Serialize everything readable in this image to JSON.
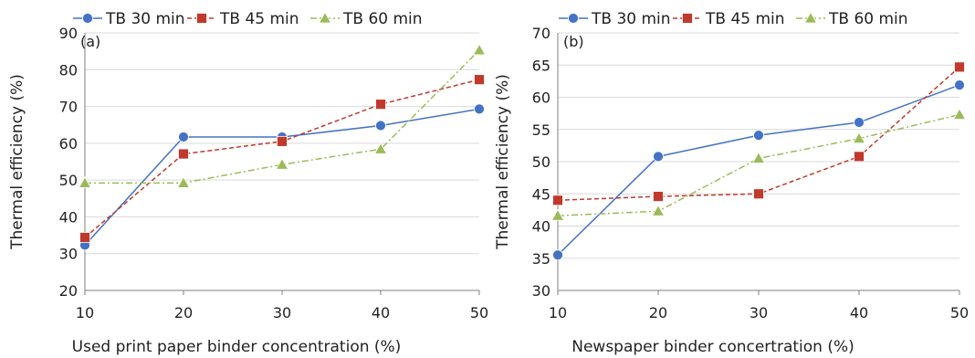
{
  "colors": {
    "tb30": "#4472C4",
    "tb45": "#C0392B",
    "tb60": "#9BBB59",
    "grid": "#d9d9d9",
    "axis": "#7f7f7f"
  },
  "chart_data": [
    {
      "type": "line",
      "panel_label": "(a)",
      "title": "",
      "xlabel": "Used print paper binder concentration (%)",
      "ylabel": "Thermal efficiency (%)",
      "x": [
        10,
        20,
        30,
        40,
        50
      ],
      "xlim": [
        10,
        50
      ],
      "ylim": [
        20,
        90
      ],
      "xticks": [
        10,
        20,
        30,
        40,
        50
      ],
      "yticks": [
        20,
        30,
        40,
        50,
        60,
        70,
        80,
        90
      ],
      "grid": "horizontal",
      "legend_position": "top",
      "series": [
        {
          "name": "TB 30 min",
          "color": "#4472C4",
          "marker": "circle",
          "line": "solid",
          "values": [
            32.3,
            61.7,
            61.7,
            64.8,
            69.3
          ]
        },
        {
          "name": "TB 45 min",
          "color": "#C0392B",
          "marker": "square",
          "line": "dashed",
          "values": [
            34.4,
            57.1,
            60.5,
            70.6,
            77.3
          ]
        },
        {
          "name": "TB 60 min",
          "color": "#9BBB59",
          "marker": "triangle",
          "line": "dashdot",
          "values": [
            49.2,
            49.2,
            54.2,
            58.4,
            85.3
          ]
        }
      ]
    },
    {
      "type": "line",
      "panel_label": "(b)",
      "title": "",
      "xlabel": "Newspaper binder concertration (%)",
      "ylabel": "Thermal efficiency (%)",
      "x": [
        10,
        20,
        30,
        40,
        50
      ],
      "xlim": [
        10,
        50
      ],
      "ylim": [
        30,
        70
      ],
      "xticks": [
        10,
        20,
        30,
        40,
        50
      ],
      "yticks": [
        30,
        35,
        40,
        45,
        50,
        55,
        60,
        65,
        70
      ],
      "grid": "horizontal",
      "legend_position": "top",
      "series": [
        {
          "name": "TB 30 min",
          "color": "#4472C4",
          "marker": "circle",
          "line": "solid",
          "values": [
            35.5,
            50.8,
            54.1,
            56.1,
            61.9
          ]
        },
        {
          "name": "TB 45 min",
          "color": "#C0392B",
          "marker": "square",
          "line": "dashed",
          "values": [
            44.0,
            44.6,
            45.0,
            50.8,
            64.7
          ]
        },
        {
          "name": "TB 60 min",
          "color": "#9BBB59",
          "marker": "triangle",
          "line": "dashdot",
          "values": [
            41.6,
            42.3,
            50.5,
            53.6,
            57.3
          ]
        }
      ]
    }
  ]
}
